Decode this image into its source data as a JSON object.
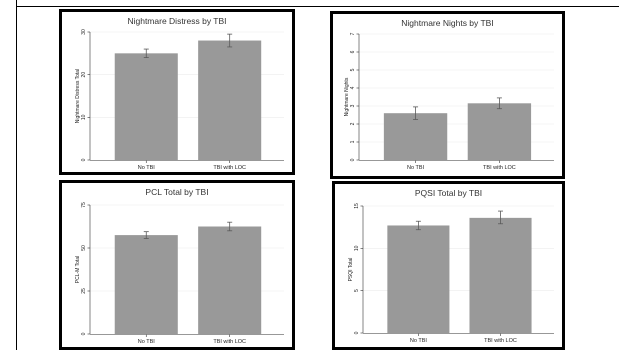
{
  "colors": {
    "bar": "#999999",
    "error": "#5a5a5a",
    "axis": "#333333",
    "grid": "#ececec",
    "border": "#000000"
  },
  "chart_data": [
    {
      "type": "bar",
      "title": "Nightmare Distress by TBI",
      "ylabel": "Nightmare Distress Total",
      "xlabel": "",
      "categories": [
        "No TBI",
        "TBI with LOC"
      ],
      "values": [
        25,
        28
      ],
      "error": [
        [
          24,
          26
        ],
        [
          26.5,
          29.5
        ]
      ],
      "ylim": [
        0,
        30
      ],
      "yticks": [
        0,
        10,
        20,
        30
      ],
      "grid": true
    },
    {
      "type": "bar",
      "title": "Nightmare Nights by TBI",
      "ylabel": "Nightmare Nights",
      "xlabel": "",
      "categories": [
        "No TBI",
        "TBI with LOC"
      ],
      "values": [
        2.6,
        3.15
      ],
      "error": [
        [
          2.25,
          2.95
        ],
        [
          2.85,
          3.45
        ]
      ],
      "ylim": [
        0,
        7
      ],
      "yticks": [
        0,
        1,
        2,
        3,
        4,
        5,
        6,
        7
      ],
      "grid": true
    },
    {
      "type": "bar",
      "title": "PCL Total by TBI",
      "ylabel": "PCL-M Total",
      "xlabel": "",
      "categories": [
        "No TBI",
        "TBI with LOC"
      ],
      "values": [
        57.5,
        62.5
      ],
      "error": [
        [
          55.5,
          59.5
        ],
        [
          60,
          65
        ]
      ],
      "ylim": [
        0,
        75
      ],
      "yticks": [
        0,
        25,
        50,
        75
      ],
      "grid": true
    },
    {
      "type": "bar",
      "title": "PQSI Total by TBI",
      "ylabel": "PSQI Total",
      "xlabel": "",
      "categories": [
        "No TBI",
        "TBI with LOC"
      ],
      "values": [
        12.7,
        13.6
      ],
      "error": [
        [
          12.2,
          13.2
        ],
        [
          12.9,
          14.4
        ]
      ],
      "ylim": [
        0,
        15
      ],
      "yticks": [
        0,
        5,
        10,
        15
      ],
      "grid": true
    }
  ]
}
